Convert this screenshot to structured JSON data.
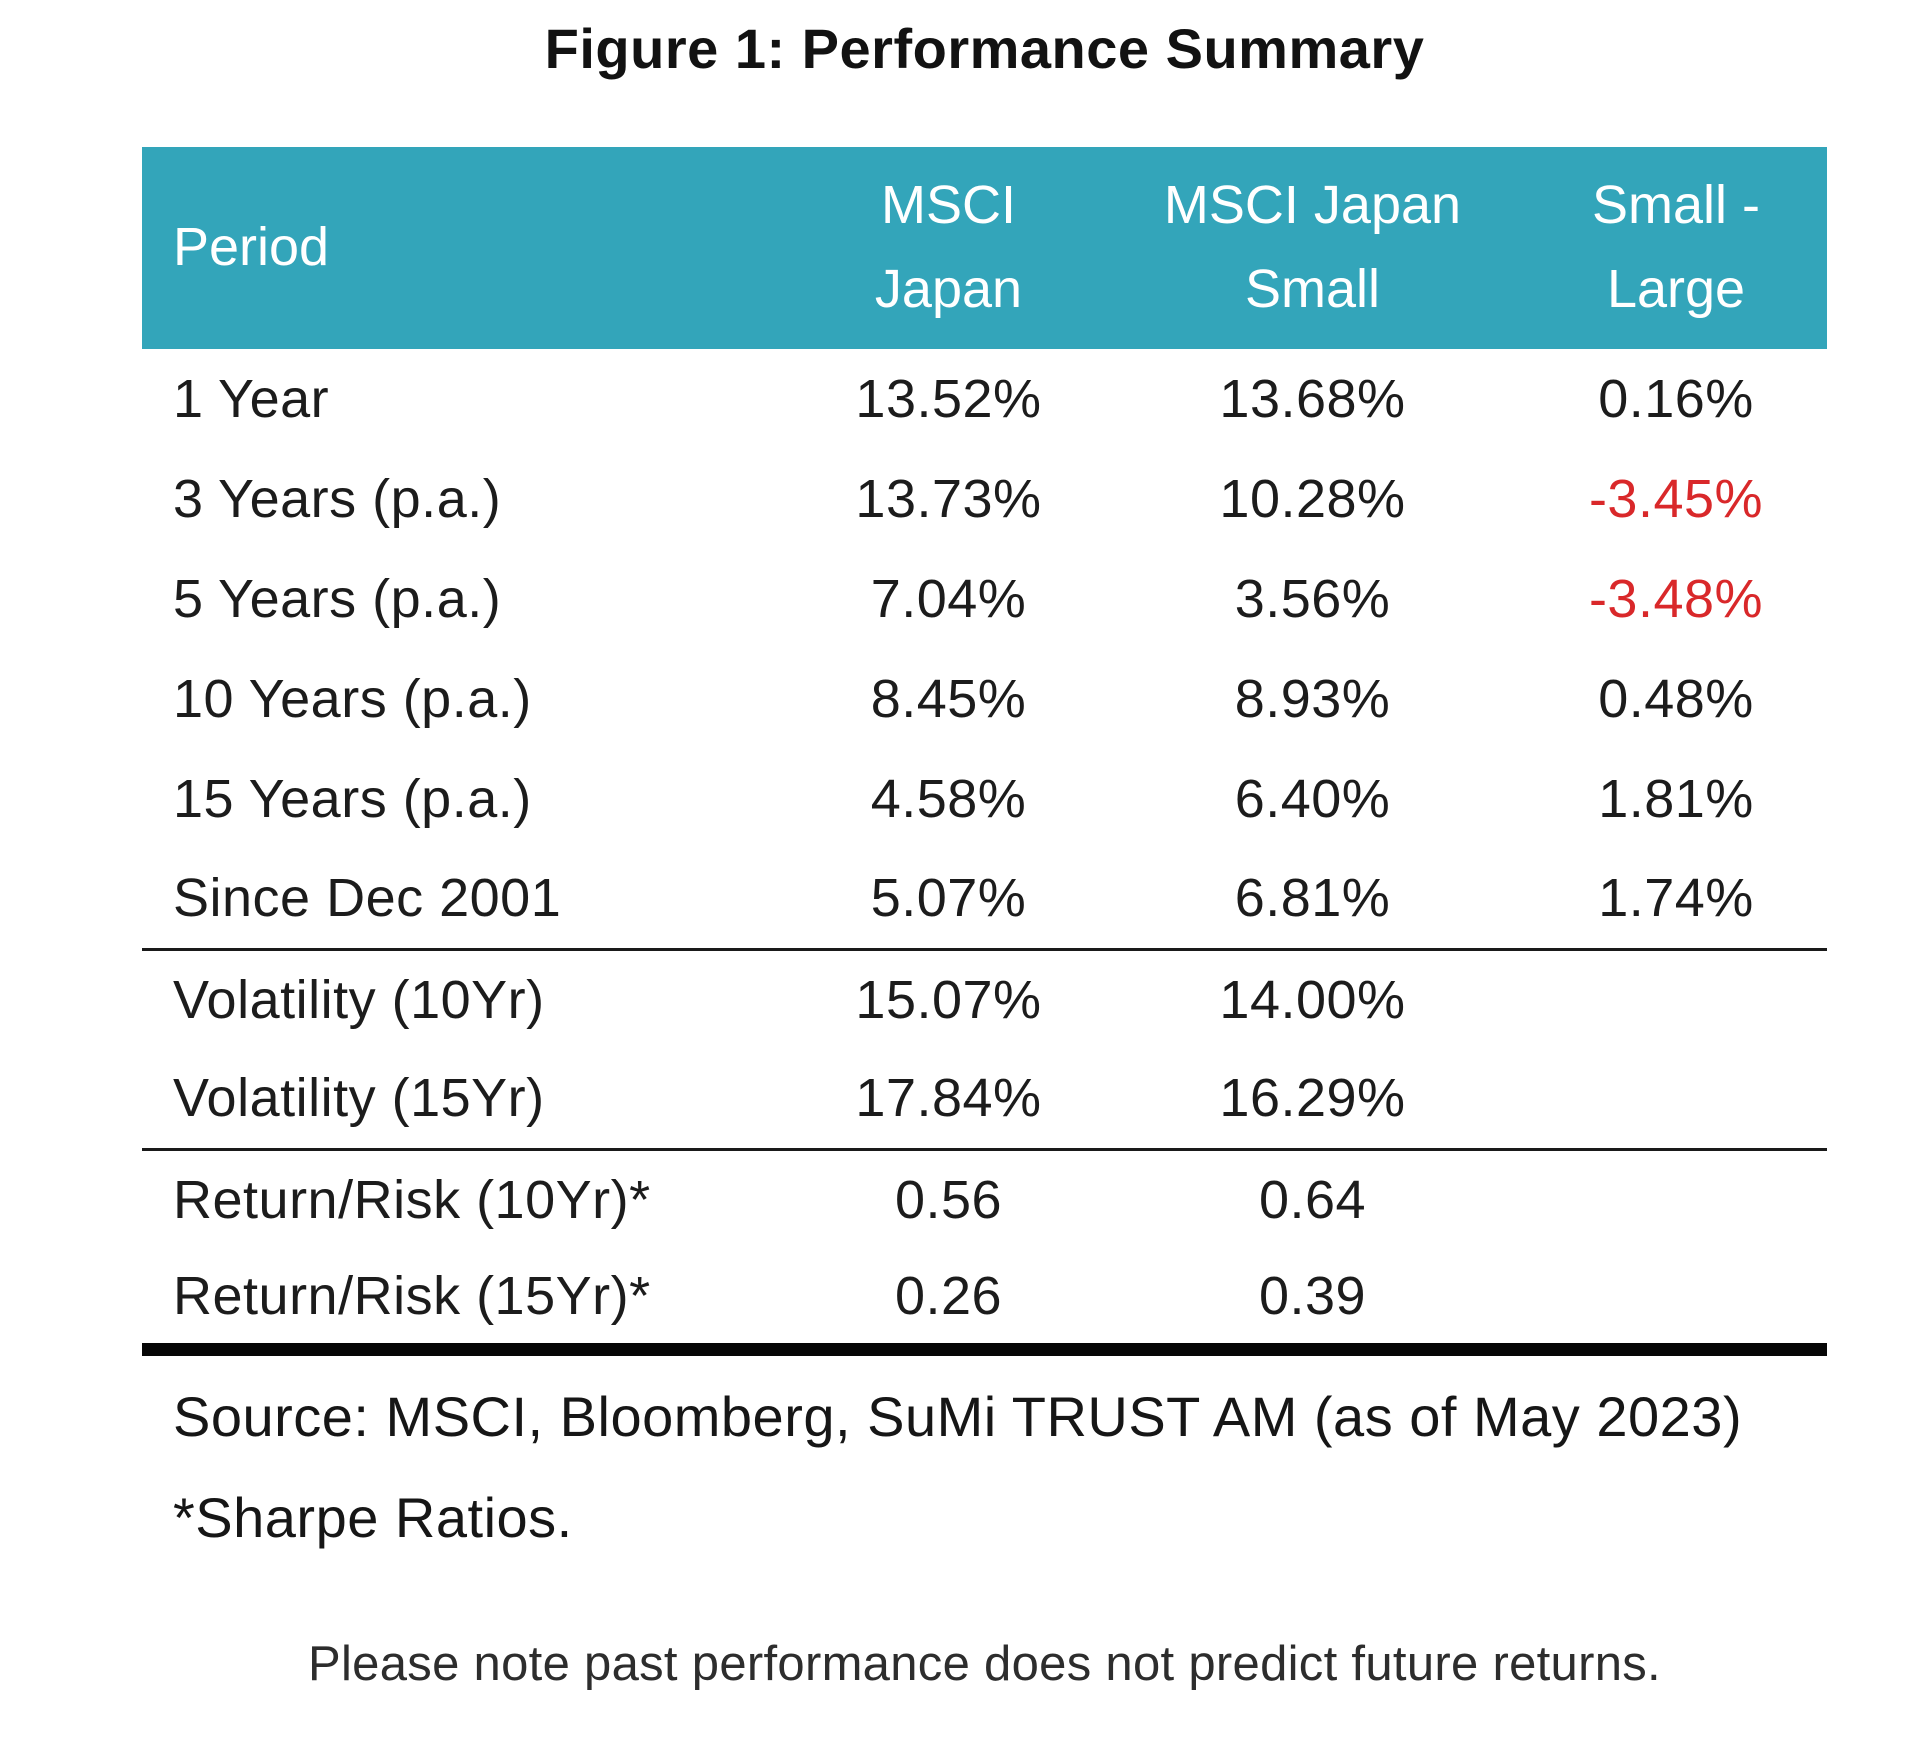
{
  "title": "Figure 1: Performance Summary",
  "colors": {
    "header_bg": "#33a5ba",
    "negative_value": "#d9282a",
    "body_text": "#1c1c1c"
  },
  "table": {
    "columns": [
      {
        "line1": "Period",
        "line2": ""
      },
      {
        "line1": "MSCI",
        "line2": "Japan"
      },
      {
        "line1": "MSCI Japan",
        "line2": "Small"
      },
      {
        "line1": "Small -",
        "line2": "Large"
      }
    ],
    "rows": [
      {
        "period": "1 Year",
        "msci_japan": "13.52%",
        "msci_japan_small": "13.68%",
        "small_large": "0.16%"
      },
      {
        "period": "3 Years (p.a.)",
        "msci_japan": "13.73%",
        "msci_japan_small": "10.28%",
        "small_large": "-3.45%"
      },
      {
        "period": "5 Years (p.a.)",
        "msci_japan": "7.04%",
        "msci_japan_small": "3.56%",
        "small_large": "-3.48%"
      },
      {
        "period": "10 Years (p.a.)",
        "msci_japan": "8.45%",
        "msci_japan_small": "8.93%",
        "small_large": "0.48%"
      },
      {
        "period": "15 Years (p.a.)",
        "msci_japan": "4.58%",
        "msci_japan_small": "6.40%",
        "small_large": "1.81%"
      },
      {
        "period": "Since Dec 2001",
        "msci_japan": "5.07%",
        "msci_japan_small": "6.81%",
        "small_large": "1.74%"
      },
      {
        "period": "Volatility (10Yr)",
        "msci_japan": "15.07%",
        "msci_japan_small": "14.00%",
        "small_large": ""
      },
      {
        "period": "Volatility (15Yr)",
        "msci_japan": "17.84%",
        "msci_japan_small": "16.29%",
        "small_large": ""
      },
      {
        "period": "Return/Risk (10Yr)*",
        "msci_japan": "0.56",
        "msci_japan_small": "0.64",
        "small_large": ""
      },
      {
        "period": "Return/Risk (15Yr)*",
        "msci_japan": "0.26",
        "msci_japan_small": "0.39",
        "small_large": ""
      }
    ]
  },
  "footer": {
    "source": "Source: MSCI, Bloomberg, SuMi TRUST AM (as of May 2023)",
    "sharpe_note": "*Sharpe Ratios.",
    "disclaimer": "Please note past performance does not predict future returns."
  }
}
